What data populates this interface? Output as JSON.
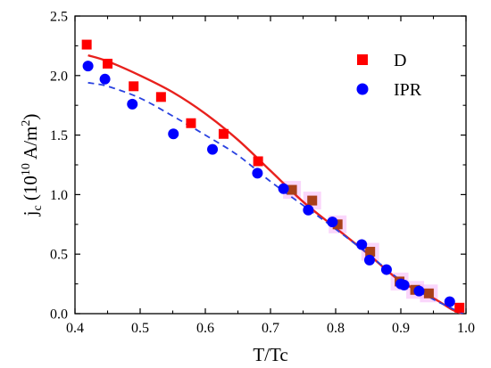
{
  "chart_data": {
    "type": "scatter",
    "title": "",
    "xlabel": "T/Tc",
    "ylabel": {
      "main": "j",
      "sub": "c",
      "open": " (10",
      "exp1": "10",
      "mid": " A/m",
      "exp2": "2",
      "close": ")"
    },
    "xlim": [
      0.4,
      1.0
    ],
    "ylim": [
      0.0,
      2.5
    ],
    "xticks": [
      "0.4",
      "0.5",
      "0.6",
      "0.7",
      "0.8",
      "0.9",
      "1.0"
    ],
    "yticks": [
      "0.0",
      "0.5",
      "1.0",
      "1.5",
      "2.0",
      "2.5"
    ],
    "legend_position": "top-right",
    "series": [
      {
        "name": "D",
        "marker": "square",
        "color": "#ff0000",
        "points": [
          [
            0.418,
            2.26
          ],
          [
            0.45,
            2.1
          ],
          [
            0.49,
            1.91
          ],
          [
            0.532,
            1.82
          ],
          [
            0.578,
            1.6
          ],
          [
            0.628,
            1.51
          ],
          [
            0.681,
            1.28
          ],
          [
            0.733,
            1.04
          ],
          [
            0.764,
            0.95
          ],
          [
            0.803,
            0.75
          ],
          [
            0.853,
            0.52
          ],
          [
            0.898,
            0.27
          ],
          [
            0.922,
            0.2
          ],
          [
            0.943,
            0.17
          ],
          [
            0.99,
            0.05
          ]
        ]
      },
      {
        "name": "IPR",
        "marker": "circle",
        "color": "#0000ff",
        "points": [
          [
            0.42,
            2.08
          ],
          [
            0.446,
            1.97
          ],
          [
            0.488,
            1.76
          ],
          [
            0.551,
            1.51
          ],
          [
            0.611,
            1.38
          ],
          [
            0.68,
            1.18
          ],
          [
            0.72,
            1.05
          ],
          [
            0.758,
            0.87
          ],
          [
            0.795,
            0.77
          ],
          [
            0.84,
            0.58
          ],
          [
            0.852,
            0.45
          ],
          [
            0.878,
            0.37
          ],
          [
            0.9,
            0.25
          ],
          [
            0.905,
            0.24
          ],
          [
            0.928,
            0.19
          ],
          [
            0.975,
            0.1
          ]
        ]
      }
    ],
    "fit_lines": [
      {
        "style": "solid",
        "color": "#e8211d",
        "points": [
          [
            0.42,
            2.17
          ],
          [
            0.45,
            2.12
          ],
          [
            0.5,
            2.0
          ],
          [
            0.55,
            1.86
          ],
          [
            0.6,
            1.68
          ],
          [
            0.65,
            1.46
          ],
          [
            0.7,
            1.2
          ],
          [
            0.75,
            0.94
          ],
          [
            0.8,
            0.72
          ],
          [
            0.85,
            0.5
          ],
          [
            0.9,
            0.27
          ],
          [
            0.95,
            0.13
          ],
          [
            0.98,
            0.03
          ],
          [
            0.995,
            0.0
          ]
        ]
      },
      {
        "style": "dashed",
        "color": "#2a42e0",
        "points": [
          [
            0.42,
            1.94
          ],
          [
            0.45,
            1.91
          ],
          [
            0.5,
            1.81
          ],
          [
            0.55,
            1.66
          ],
          [
            0.6,
            1.5
          ],
          [
            0.65,
            1.33
          ],
          [
            0.7,
            1.11
          ],
          [
            0.75,
            0.91
          ],
          [
            0.8,
            0.71
          ],
          [
            0.85,
            0.5
          ],
          [
            0.9,
            0.28
          ],
          [
            0.95,
            0.12
          ],
          [
            0.98,
            0.04
          ],
          [
            0.995,
            0.0
          ]
        ]
      }
    ],
    "overlap_color": "#f5b5f7"
  }
}
